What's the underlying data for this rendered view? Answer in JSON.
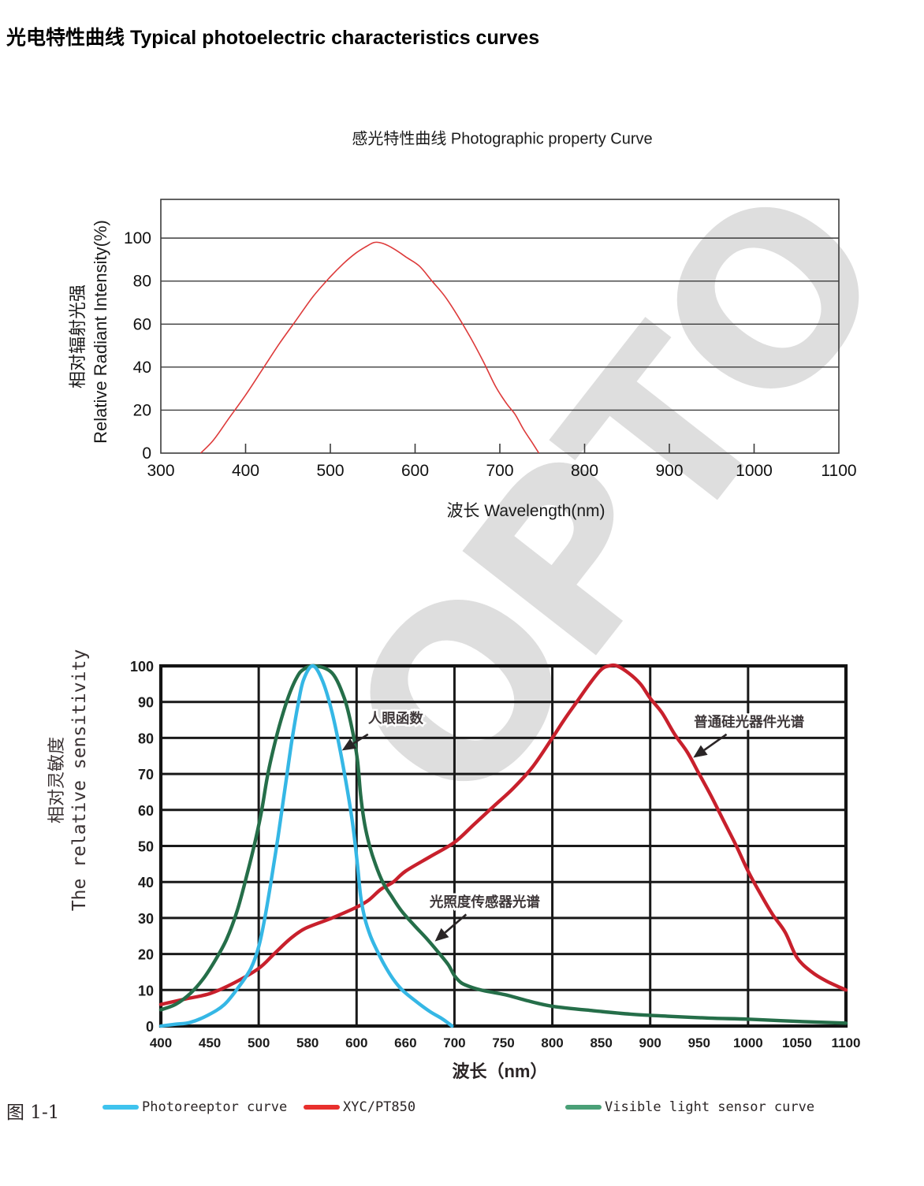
{
  "page": {
    "title": "光电特性曲线 Typical photoelectric characteristics curves"
  },
  "watermark": {
    "text": "OPTO",
    "color": "#dedede"
  },
  "chart_data": [
    {
      "id": "photographic-property",
      "type": "line",
      "title": "感光特性曲线  Photographic property Curve",
      "xlabel": "波长  Wavelength(nm)",
      "ylabel": [
        "相对辐射光强",
        "Relative Radiant Intensity(%)"
      ],
      "xlim": [
        300,
        1100
      ],
      "ylim": [
        0,
        118
      ],
      "xticks": [
        300,
        400,
        500,
        600,
        700,
        800,
        900,
        1000,
        1100
      ],
      "yticks": [
        0,
        20,
        40,
        60,
        80,
        100
      ],
      "grid": "horizontal-only",
      "legend_position": "none",
      "series": [
        {
          "name": "radiant-intensity",
          "color": "#dd3a3a",
          "points": [
            [
              347,
              0
            ],
            [
              362,
              6
            ],
            [
              380,
              16
            ],
            [
              400,
              27
            ],
            [
              420,
              39
            ],
            [
              440,
              51
            ],
            [
              460,
              62
            ],
            [
              480,
              73
            ],
            [
              500,
              82
            ],
            [
              515,
              88
            ],
            [
              530,
              93
            ],
            [
              542,
              96
            ],
            [
              552,
              98
            ],
            [
              562,
              97.5
            ],
            [
              575,
              95
            ],
            [
              590,
              91
            ],
            [
              605,
              87
            ],
            [
              620,
              80
            ],
            [
              635,
              73
            ],
            [
              650,
              64
            ],
            [
              665,
              54
            ],
            [
              680,
              43
            ],
            [
              695,
              31
            ],
            [
              708,
              23
            ],
            [
              718,
              18
            ],
            [
              728,
              11
            ],
            [
              738,
              5
            ],
            [
              746,
              0
            ]
          ]
        }
      ]
    },
    {
      "id": "relative-sensitivity",
      "type": "line",
      "title": "",
      "xlabel": "波长（nm）",
      "ylabel": [
        "相对灵敏度",
        "The relative sensitivity"
      ],
      "xticklabels": [
        "400",
        "450",
        "500",
        "580",
        "600",
        "660",
        "700",
        "750",
        "800",
        "850",
        "900",
        "950",
        "1000",
        "1050",
        "1100"
      ],
      "yticks": [
        0,
        10,
        20,
        30,
        40,
        50,
        60,
        70,
        80,
        90,
        100
      ],
      "ylim": [
        0,
        100
      ],
      "grid": "both-heavy",
      "figure_label": "图 1-1",
      "series": [
        {
          "name": "xyc-pt850",
          "label": "XYC/PT850",
          "color": "#c8202c",
          "legend_color": "#e8302d",
          "points": [
            [
              400,
              6
            ],
            [
              425,
              7.5
            ],
            [
              450,
              9
            ],
            [
              475,
              12
            ],
            [
              500,
              16
            ],
            [
              525,
              20
            ],
            [
              550,
              24
            ],
            [
              575,
              27
            ],
            [
              590,
              30
            ],
            [
              600,
              33
            ],
            [
              615,
              35
            ],
            [
              630,
              38
            ],
            [
              645,
              40
            ],
            [
              660,
              43
            ],
            [
              680,
              47
            ],
            [
              700,
              51
            ],
            [
              720,
              56
            ],
            [
              740,
              61
            ],
            [
              760,
              66
            ],
            [
              780,
              72
            ],
            [
              800,
              80
            ],
            [
              812,
              85
            ],
            [
              825,
              90
            ],
            [
              838,
              95
            ],
            [
              850,
              99
            ],
            [
              858,
              100
            ],
            [
              866,
              100
            ],
            [
              878,
              98
            ],
            [
              890,
              95
            ],
            [
              900,
              91
            ],
            [
              912,
              87
            ],
            [
              925,
              81
            ],
            [
              938,
              76
            ],
            [
              950,
              70
            ],
            [
              962,
              64
            ],
            [
              975,
              57
            ],
            [
              988,
              50
            ],
            [
              1000,
              43
            ],
            [
              1012,
              37
            ],
            [
              1025,
              31
            ],
            [
              1038,
              26
            ],
            [
              1050,
              19
            ],
            [
              1065,
              15
            ],
            [
              1080,
              12.5
            ],
            [
              1100,
              10
            ]
          ]
        },
        {
          "name": "visible-light-sensor",
          "label": "Visible light sensor curve",
          "color": "#256e49",
          "legend_color": "#4aa077",
          "points": [
            [
              400,
              4.5
            ],
            [
              415,
              6
            ],
            [
              430,
              9
            ],
            [
              443,
              13
            ],
            [
              455,
              18
            ],
            [
              467,
              24
            ],
            [
              478,
              32
            ],
            [
              488,
              42
            ],
            [
              497,
              52
            ],
            [
              505,
              60
            ],
            [
              515,
              70
            ],
            [
              527,
              79
            ],
            [
              540,
              87
            ],
            [
              552,
              93
            ],
            [
              563,
              97
            ],
            [
              573,
              99
            ],
            [
              583,
              100
            ],
            [
              590,
              98
            ],
            [
              595,
              91
            ],
            [
              598,
              83
            ],
            [
              601,
              74
            ],
            [
              605,
              64
            ],
            [
              610,
              56
            ],
            [
              616,
              50
            ],
            [
              623,
              45
            ],
            [
              632,
              40
            ],
            [
              643,
              36
            ],
            [
              655,
              32
            ],
            [
              667,
              28
            ],
            [
              678,
              24
            ],
            [
              688,
              20
            ],
            [
              695,
              17
            ],
            [
              700,
              14
            ],
            [
              707,
              12
            ],
            [
              715,
              11
            ],
            [
              727,
              10
            ],
            [
              740,
              9.3
            ],
            [
              755,
              8.5
            ],
            [
              775,
              7
            ],
            [
              800,
              5.5
            ],
            [
              840,
              4.3
            ],
            [
              880,
              3.3
            ],
            [
              920,
              2.7
            ],
            [
              960,
              2.2
            ],
            [
              1000,
              1.9
            ],
            [
              1050,
              1.3
            ],
            [
              1100,
              0.8
            ]
          ]
        },
        {
          "name": "photoreceptor",
          "label": "Photoreeptor curve",
          "color": "#35b7e5",
          "legend_color": "#3fc3ee",
          "points": [
            [
              400,
              0
            ],
            [
              415,
              0.5
            ],
            [
              430,
              1
            ],
            [
              448,
              3
            ],
            [
              465,
              6
            ],
            [
              480,
              11
            ],
            [
              492,
              16
            ],
            [
              500,
              22
            ],
            [
              510,
              30
            ],
            [
              520,
              40
            ],
            [
              532,
              53
            ],
            [
              543,
              66
            ],
            [
              554,
              79
            ],
            [
              564,
              89
            ],
            [
              573,
              96
            ],
            [
              582,
              100
            ],
            [
              586,
              96
            ],
            [
              590,
              87
            ],
            [
              594,
              74
            ],
            [
              598,
              58
            ],
            [
              601,
              45
            ],
            [
              605,
              36
            ],
            [
              610,
              30
            ],
            [
              617,
              25
            ],
            [
              625,
              21
            ],
            [
              634,
              17
            ],
            [
              645,
              13
            ],
            [
              656,
              10
            ],
            [
              668,
              7
            ],
            [
              680,
              4
            ],
            [
              690,
              2
            ],
            [
              698,
              0
            ]
          ]
        }
      ],
      "annotations": [
        {
          "name": "human-eye",
          "text": "人眼函数",
          "text_at": [
            648,
            85.5
          ],
          "arrow_from": [
            614,
            81
          ],
          "arrow_to": [
            594,
            76.5
          ]
        },
        {
          "name": "silicon-device",
          "text": "普通硅光器件光谱",
          "text_at": [
            1001,
            84.5
          ],
          "arrow_from": [
            978,
            81
          ],
          "arrow_to": [
            944,
            74.5
          ]
        },
        {
          "name": "illuminance-sensor",
          "text": "光照度传感器光谱",
          "text_at": [
            731,
            34.5
          ],
          "arrow_from": [
            712,
            31
          ],
          "arrow_to": [
            684,
            23.5
          ]
        }
      ],
      "legend": [
        {
          "label": "Photoreeptor curve",
          "color": "#3fc3ee"
        },
        {
          "label": "XYC/PT850",
          "color": "#e8302d"
        },
        {
          "label": "Visible light sensor curve",
          "color": "#4aa077"
        }
      ]
    }
  ]
}
